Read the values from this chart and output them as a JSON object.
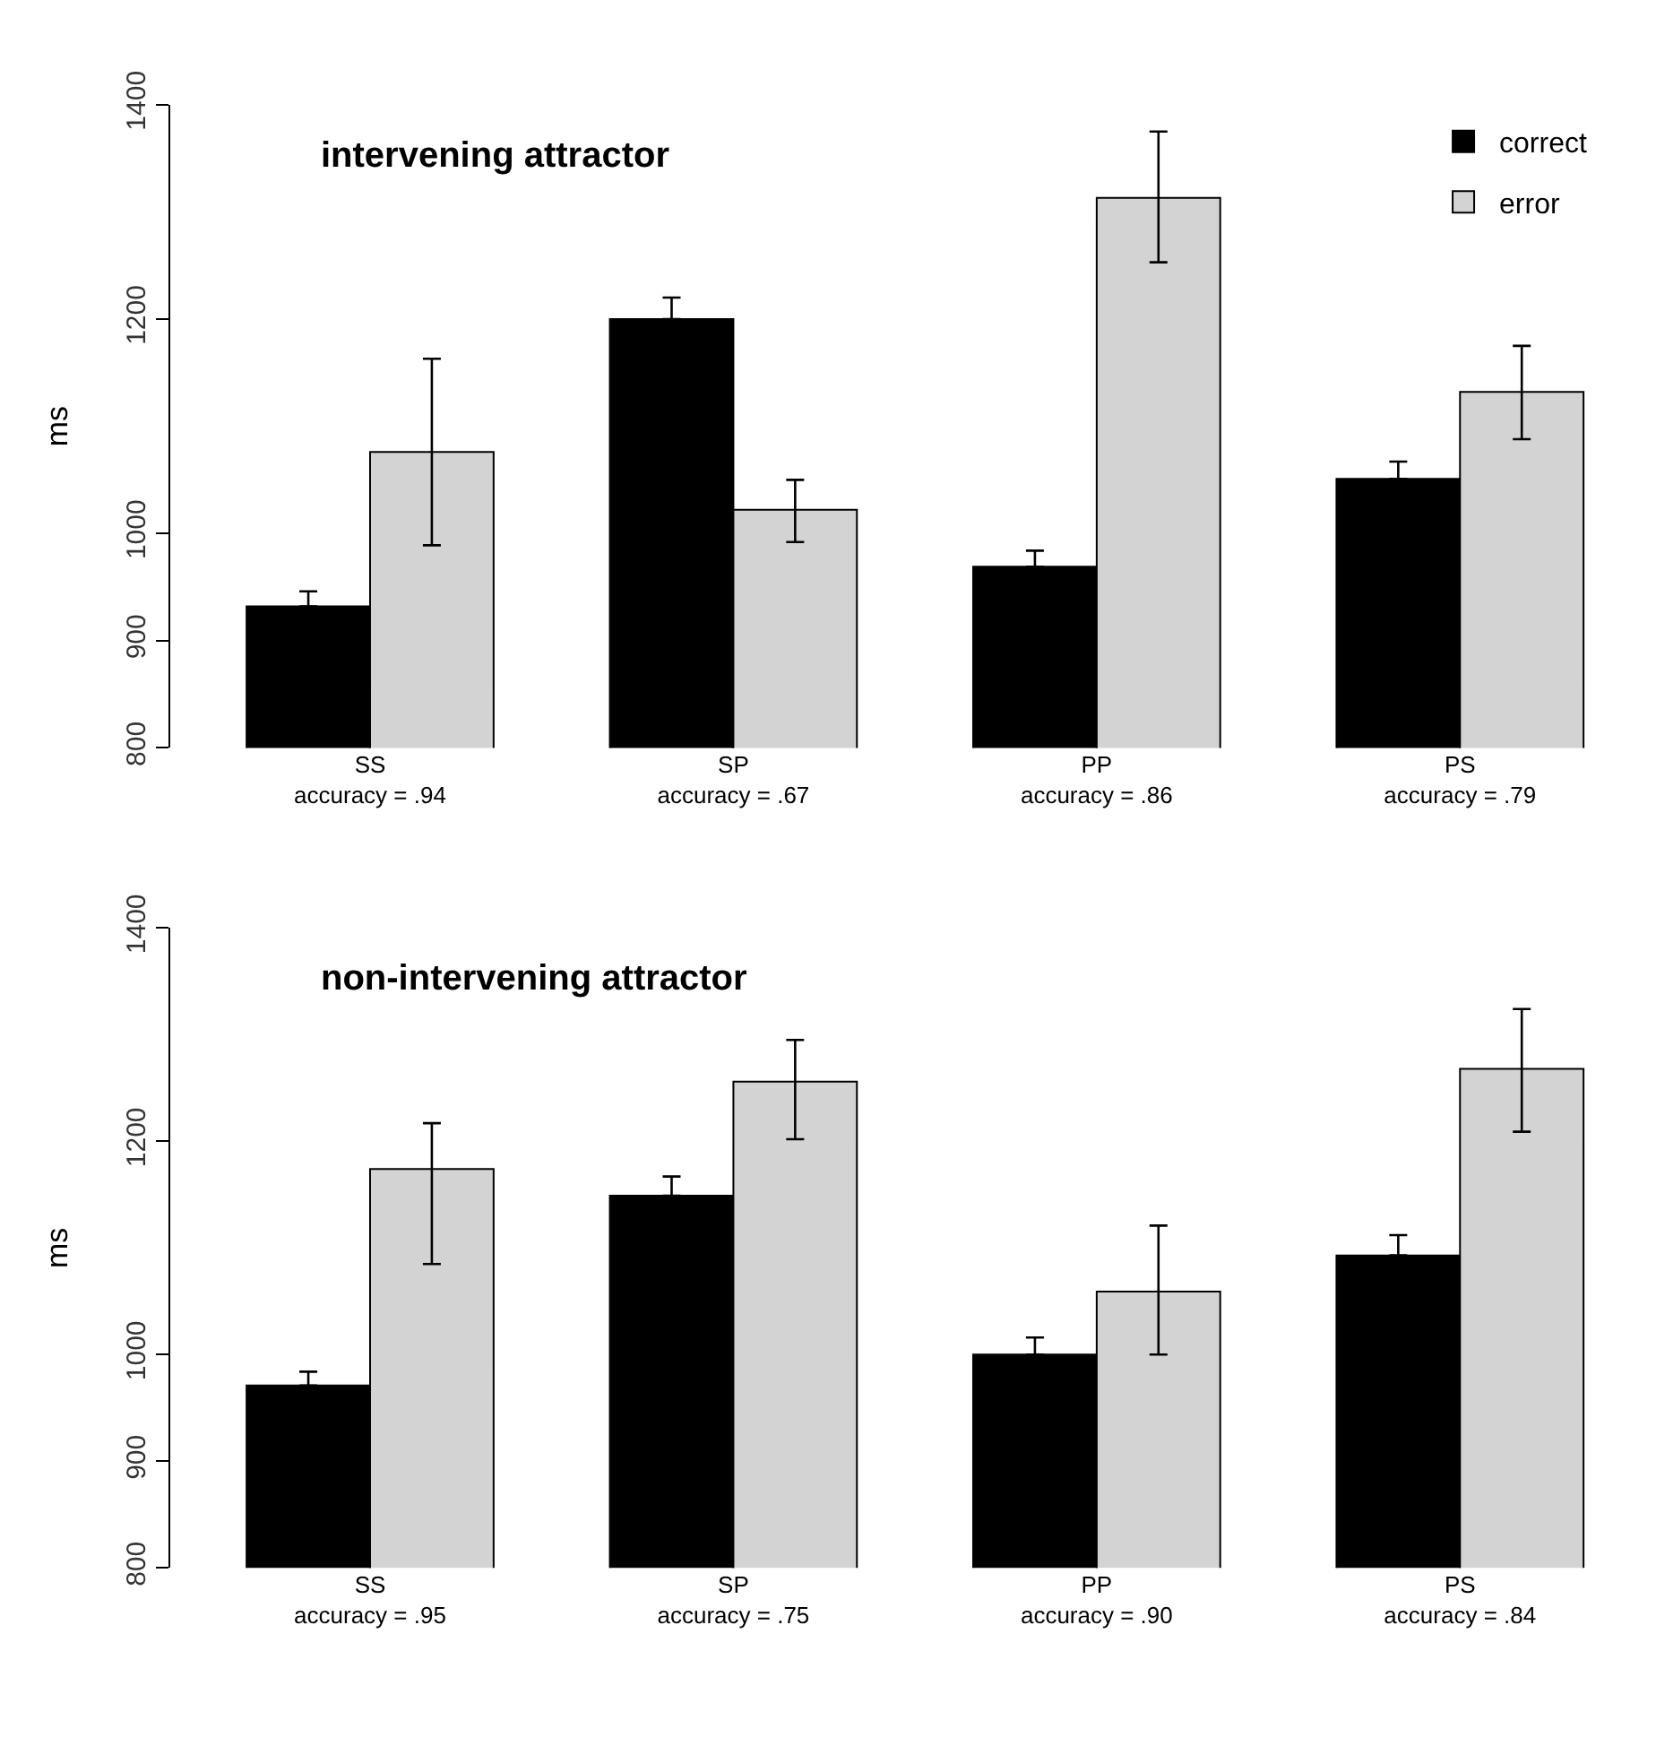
{
  "chart_data": [
    {
      "type": "bar",
      "title": "intervening attractor",
      "ylabel": "ms",
      "categories": [
        "SS\naccuracy = .94",
        "SP\naccuracy = .67",
        "PP\naccuracy = .86",
        "PS\naccuracy = .79"
      ],
      "series": [
        {
          "name": "correct",
          "color": "#000000",
          "values": [
            932,
            1200,
            969,
            1051
          ],
          "errors": [
            [
              932,
              946
            ],
            [
              1200,
              1220
            ],
            [
              969,
              984
            ],
            [
              1051,
              1067
            ]
          ]
        },
        {
          "name": "error",
          "color": "#d3d3d3",
          "values": [
            1076,
            1022,
            1313,
            1132
          ],
          "errors": [
            [
              989,
              1163
            ],
            [
              992,
              1050
            ],
            [
              1253,
              1375
            ],
            [
              1088,
              1175
            ]
          ]
        }
      ],
      "ylim": [
        800,
        1400
      ],
      "yticks": [
        800,
        900,
        1000,
        1200,
        1400
      ],
      "legend": "top right"
    },
    {
      "type": "bar",
      "title": "non-intervening attractor",
      "ylabel": "ms",
      "categories": [
        "SS\naccuracy = .95",
        "SP\naccuracy = .75",
        "PP\naccuracy = .90",
        "PS\naccuracy = .84"
      ],
      "series": [
        {
          "color": "#000000",
          "values": [
            971,
            1149,
            1000,
            1093
          ],
          "errors": [
            [
              971,
              984
            ],
            [
              1149,
              1167
            ],
            [
              1000,
              1016
            ],
            [
              1093,
              1112
            ]
          ]
        },
        {
          "color": "#d3d3d3",
          "values": [
            1174,
            1256,
            1059,
            1268
          ],
          "errors": [
            [
              1085,
              1217
            ],
            [
              1202,
              1295
            ],
            [
              1000,
              1121
            ],
            [
              1209,
              1324
            ]
          ]
        }
      ],
      "ylim": [
        800,
        1400
      ],
      "yticks": [
        800,
        900,
        1000,
        1200,
        1400
      ],
      "legend": false
    }
  ]
}
